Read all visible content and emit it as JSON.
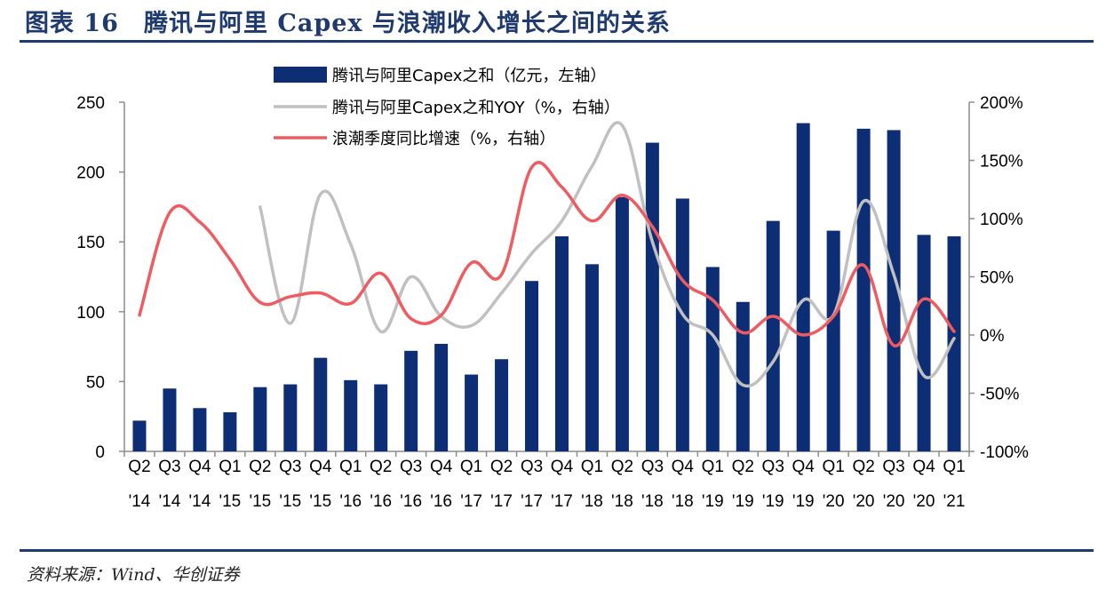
{
  "figure": {
    "title": "图表 16　腾讯与阿里 Capex 与浪潮收入增长之间的关系",
    "source": "资料来源：Wind、华创证券"
  },
  "chart_data": {
    "type": "bar",
    "title": "图表 16　腾讯与阿里 Capex 与浪潮收入增长之间的关系",
    "xlabel": "",
    "ylabel": "",
    "categories": [
      "Q2 '14",
      "Q3 '14",
      "Q4 '14",
      "Q1 '15",
      "Q2 '15",
      "Q3 '15",
      "Q4 '15",
      "Q1 '16",
      "Q2 '16",
      "Q3 '16",
      "Q4 '16",
      "Q1 '17",
      "Q2 '17",
      "Q3 '17",
      "Q4 '17",
      "Q1 '18",
      "Q2 '18",
      "Q3 '18",
      "Q4 '18",
      "Q1 '19",
      "Q2 '19",
      "Q3 '19",
      "Q4 '19",
      "Q1 '20",
      "Q2 '20",
      "Q3 '20",
      "Q4 '20",
      "Q1 '21"
    ],
    "x_tick_quarters": [
      "Q2",
      "Q3",
      "Q4",
      "Q1",
      "Q2",
      "Q3",
      "Q4",
      "Q1",
      "Q2",
      "Q3",
      "Q4",
      "Q1",
      "Q2",
      "Q3",
      "Q4",
      "Q1",
      "Q2",
      "Q3",
      "Q4",
      "Q1",
      "Q2",
      "Q3",
      "Q4",
      "Q1",
      "Q2",
      "Q3",
      "Q4",
      "Q1"
    ],
    "x_tick_years": [
      "'14",
      "'14",
      "'14",
      "'15",
      "'15",
      "'15",
      "'15",
      "'16",
      "'16",
      "'16",
      "'16",
      "'17",
      "'17",
      "'17",
      "'17",
      "'18",
      "'18",
      "'18",
      "'18",
      "'19",
      "'19",
      "'19",
      "'19",
      "'20",
      "'20",
      "'20",
      "'20",
      "'21"
    ],
    "y_left": {
      "ylim": [
        0,
        250
      ],
      "ticks": [
        "0",
        "50",
        "100",
        "150",
        "200",
        "250"
      ],
      "tick_values": [
        0,
        50,
        100,
        150,
        200,
        250
      ]
    },
    "y_right": {
      "ylim": [
        -100,
        200
      ],
      "ticks": [
        "-100%",
        "-50%",
        "0%",
        "50%",
        "100%",
        "150%",
        "200%"
      ],
      "tick_values": [
        -100,
        -50,
        0,
        50,
        100,
        150,
        200
      ]
    },
    "grid": false,
    "legend_position": "top-center",
    "series": [
      {
        "name": "腾讯与阿里Capex之和（亿元，左轴）",
        "type": "bar",
        "axis": "left",
        "color": "#0d2d74",
        "values": [
          22,
          45,
          31,
          28,
          46,
          48,
          67,
          51,
          48,
          72,
          77,
          55,
          66,
          122,
          154,
          134,
          182,
          221,
          181,
          132,
          107,
          165,
          235,
          158,
          231,
          230,
          155,
          154
        ]
      },
      {
        "name": "腾讯与阿里Capex之和YOY（%，右轴）",
        "type": "line",
        "axis": "right",
        "color": "#c0c0c0",
        "values": [
          null,
          null,
          null,
          null,
          110,
          10,
          121,
          78,
          3,
          50,
          16,
          8,
          36,
          70,
          98,
          145,
          180,
          80,
          18,
          0,
          -43,
          -23,
          30,
          17,
          115,
          52,
          -35,
          -3
        ]
      },
      {
        "name": "浪潮季度同比增速（%，右轴）",
        "type": "line",
        "axis": "right",
        "color": "#ee5b60",
        "values": [
          17,
          105,
          97,
          65,
          28,
          33,
          36,
          27,
          53,
          14,
          17,
          62,
          52,
          144,
          127,
          98,
          120,
          93,
          47,
          30,
          2,
          16,
          0,
          16,
          60,
          -9,
          31,
          3
        ]
      }
    ]
  }
}
